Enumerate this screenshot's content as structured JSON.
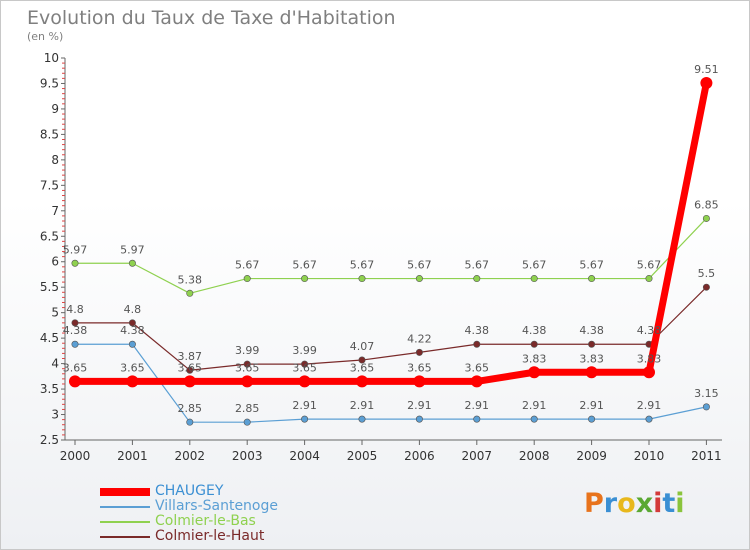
{
  "title": "Evolution du Taux de Taxe d'Habitation",
  "unit": "(en %)",
  "logo": "Proxiti",
  "logo_colors": [
    "#e8731c",
    "#3a8fd3",
    "#e8b81c",
    "#5aa832",
    "#d33a3a",
    "#3a8fd3",
    "#8ac43c"
  ],
  "chart_data": {
    "type": "line",
    "x": [
      "2000",
      "2001",
      "2002",
      "2003",
      "2004",
      "2005",
      "2006",
      "2007",
      "2008",
      "2009",
      "2010",
      "2011"
    ],
    "ylim": [
      2.5,
      10
    ],
    "yticks": [
      "2.5",
      "3",
      "3.5",
      "4",
      "4.5",
      "5",
      "5.5",
      "6",
      "6.5",
      "7",
      "7.5",
      "8",
      "8.5",
      "9",
      "9.5",
      "10"
    ],
    "grid": false,
    "legend_position": "bottom-left",
    "series": [
      {
        "name": "CHAUGEY",
        "color": "#ff0000",
        "values": [
          3.65,
          3.65,
          3.65,
          3.65,
          3.65,
          3.65,
          3.65,
          3.65,
          3.83,
          3.83,
          3.83,
          9.51
        ],
        "labels": [
          "3.65",
          "3.65",
          "3.65",
          "3.65",
          "3.65",
          "3.65",
          "3.65",
          "3.65",
          "3.83",
          "3.83",
          "3.83",
          "9.51"
        ]
      },
      {
        "name": "Villars-Santenoge",
        "color": "#5b9fd4",
        "values": [
          4.38,
          4.38,
          2.85,
          2.85,
          2.91,
          2.91,
          2.91,
          2.91,
          2.91,
          2.91,
          2.91,
          3.15
        ],
        "labels": [
          "4.38",
          "4.38",
          "2.85",
          "2.85",
          "2.91",
          "2.91",
          "2.91",
          "2.91",
          "2.91",
          "2.91",
          "2.91",
          "3.15"
        ]
      },
      {
        "name": "Colmier-le-Bas",
        "color": "#8fd14f",
        "values": [
          5.97,
          5.97,
          5.38,
          5.67,
          5.67,
          5.67,
          5.67,
          5.67,
          5.67,
          5.67,
          5.67,
          6.85
        ],
        "labels": [
          "5.97",
          "5.97",
          "5.38",
          "5.67",
          "5.67",
          "5.67",
          "5.67",
          "5.67",
          "5.67",
          "5.67",
          "5.67",
          "6.85"
        ]
      },
      {
        "name": "Colmier-le-Haut",
        "color": "#7a2a2a",
        "values": [
          4.8,
          4.8,
          3.87,
          3.99,
          3.99,
          4.07,
          4.22,
          4.38,
          4.38,
          4.38,
          4.38,
          5.5
        ],
        "labels": [
          "4.8",
          "4.8",
          "3.87",
          "3.99",
          "3.99",
          "4.07",
          "4.22",
          "4.38",
          "4.38",
          "4.38",
          "4.38",
          "5.5"
        ]
      }
    ]
  }
}
